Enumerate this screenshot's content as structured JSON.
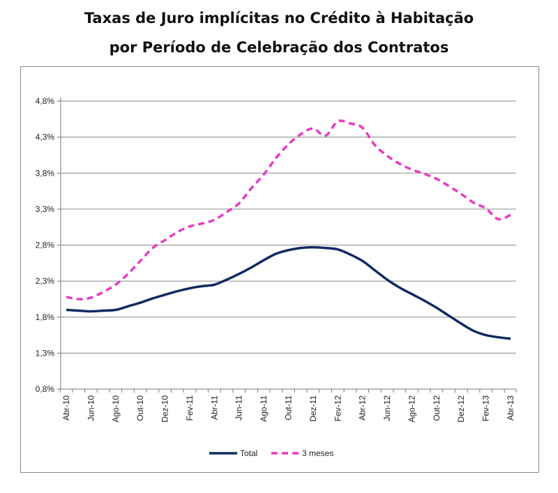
{
  "chart_data": {
    "type": "line",
    "title": "Taxas de Juro implícitas no Crédito à Habitação",
    "subtitle": "por Período de Celebração dos Contratos",
    "xlabel": "",
    "ylabel": "",
    "x": [
      "Abr-10",
      "Mai-10",
      "Jun-10",
      "Jul-10",
      "Ago-10",
      "Set-10",
      "Out-10",
      "Nov-10",
      "Dez-10",
      "Jan-11",
      "Fev-11",
      "Mar-11",
      "Abr-11",
      "Mai-11",
      "Jun-11",
      "Jul-11",
      "Ago-11",
      "Set-11",
      "Out-11",
      "Nov-11",
      "Dez-11",
      "Jan-12",
      "Fev-12",
      "Mar-12",
      "Abr-12",
      "Mai-12",
      "Jun-12",
      "Jul-12",
      "Ago-12",
      "Set-12",
      "Out-12",
      "Nov-12",
      "Dez-12",
      "Jan-13",
      "Fev-13",
      "Mar-13",
      "Abr-13"
    ],
    "x_tick_labels": [
      "Abr-10",
      "Jun-10",
      "Ago-10",
      "Out-10",
      "Dez-10",
      "Fev-11",
      "Abr-11",
      "Jun-11",
      "Ago-11",
      "Out-11",
      "Dez-11",
      "Fev-12",
      "Abr-12",
      "Jun-12",
      "Ago-12",
      "Out-12",
      "Dez-12",
      "Fev-13",
      "Abr-13"
    ],
    "y_ticks": [
      "0,8%",
      "1,3%",
      "1,8%",
      "2,3%",
      "2,8%",
      "3,3%",
      "3,8%",
      "4,3%",
      "4,8%"
    ],
    "ylim": [
      0.8,
      4.8
    ],
    "y_grid": true,
    "legend_position": "bottom",
    "series": [
      {
        "name": "Total",
        "color": "#102a60",
        "style": "solid",
        "values": [
          1.9,
          1.89,
          1.88,
          1.89,
          1.9,
          1.95,
          2.0,
          2.06,
          2.11,
          2.16,
          2.2,
          2.23,
          2.25,
          2.32,
          2.4,
          2.49,
          2.59,
          2.68,
          2.73,
          2.76,
          2.77,
          2.76,
          2.74,
          2.67,
          2.58,
          2.45,
          2.32,
          2.21,
          2.12,
          2.03,
          1.93,
          1.82,
          1.71,
          1.61,
          1.55,
          1.52,
          1.5
        ]
      },
      {
        "name": "3 meses",
        "color": "#e83cbf",
        "style": "dashed",
        "values": [
          2.08,
          2.05,
          2.07,
          2.15,
          2.25,
          2.4,
          2.58,
          2.76,
          2.87,
          2.98,
          3.06,
          3.1,
          3.15,
          3.26,
          3.38,
          3.59,
          3.78,
          4.01,
          4.2,
          4.34,
          4.42,
          4.32,
          4.52,
          4.49,
          4.43,
          4.19,
          4.04,
          3.93,
          3.85,
          3.79,
          3.72,
          3.62,
          3.51,
          3.39,
          3.31,
          3.16,
          3.22
        ]
      }
    ]
  }
}
